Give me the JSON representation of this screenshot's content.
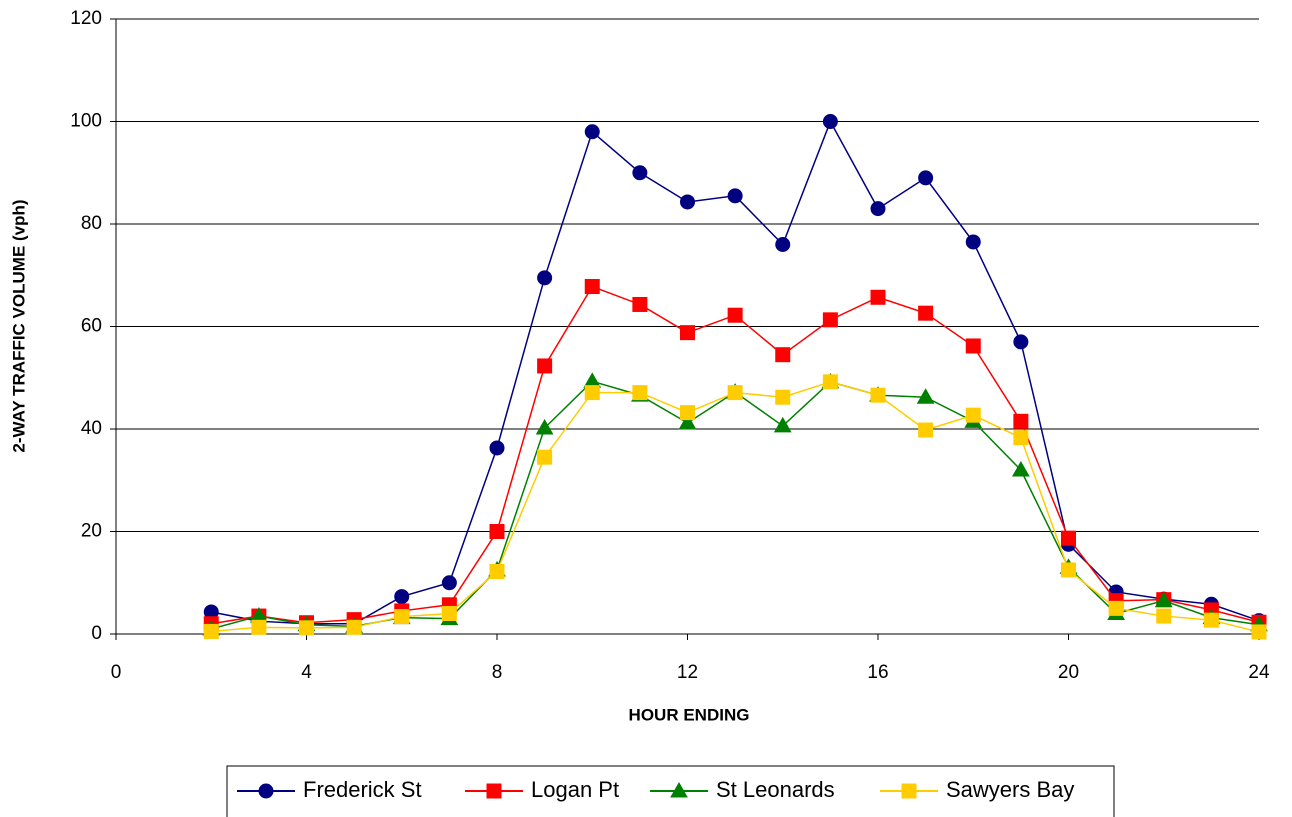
{
  "chart_data": {
    "type": "line",
    "x_label": "HOUR ENDING",
    "y_label": "2-WAY TRAFFIC VOLUME (vph)",
    "x": [
      2,
      3,
      4,
      5,
      6,
      7,
      8,
      9,
      10,
      11,
      12,
      13,
      14,
      15,
      16,
      17,
      18,
      19,
      20,
      21,
      22,
      23,
      24
    ],
    "series": [
      {
        "name": "Frederick St",
        "color": "#000080",
        "marker": "circle",
        "values": [
          4.3,
          2.5,
          2,
          2,
          7.3,
          10,
          36.3,
          69.5,
          98,
          90,
          84.3,
          85.5,
          76,
          100,
          83,
          89,
          76.5,
          57,
          17.5,
          8.2,
          6.8,
          5.8,
          2.6
        ]
      },
      {
        "name": "Logan Pt",
        "color": "#ff0000",
        "marker": "square",
        "values": [
          2,
          3.5,
          2.2,
          2.8,
          4.5,
          5.7,
          20,
          52.3,
          67.8,
          64.3,
          58.8,
          62.2,
          54.5,
          61.3,
          65.7,
          62.6,
          56.2,
          41.5,
          18.7,
          6.5,
          6.7,
          4.7,
          2.3
        ]
      },
      {
        "name": "St Leonards",
        "color": "#008000",
        "marker": "triangle",
        "values": [
          1,
          3.5,
          1.8,
          1.5,
          3.2,
          3,
          12.5,
          40.2,
          49.3,
          46.6,
          41.2,
          47.2,
          40.6,
          49.2,
          46.6,
          46.2,
          41.5,
          32,
          13,
          4,
          6.5,
          3.2,
          1.8
        ]
      },
      {
        "name": "Sawyers Bay",
        "color": "#ffcc00",
        "marker": "square",
        "values": [
          0.5,
          1.3,
          1.2,
          1.3,
          3.4,
          4,
          12.2,
          34.5,
          47.1,
          47.1,
          43.2,
          47.1,
          46.2,
          49.2,
          46.6,
          39.8,
          42.7,
          38.3,
          12.5,
          5,
          3.5,
          2.7,
          0.4
        ]
      }
    ],
    "xlim": [
      0,
      24
    ],
    "xticks": [
      0,
      4,
      8,
      12,
      16,
      20,
      24
    ],
    "ylim": [
      0,
      120
    ],
    "yticks": [
      0,
      20,
      40,
      60,
      80,
      100,
      120
    ],
    "grid": true,
    "legend": "bottom"
  }
}
